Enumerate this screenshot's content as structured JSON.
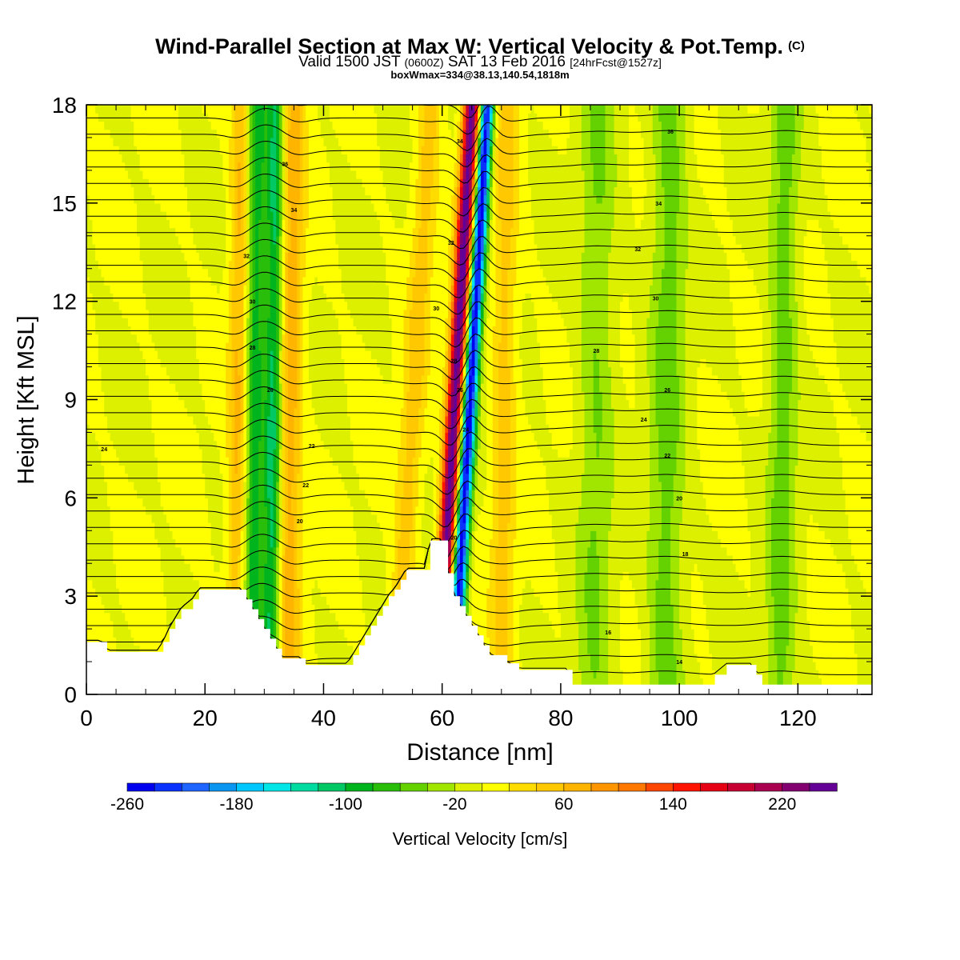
{
  "title": {
    "main": "Wind-Parallel Section at Max W: Vertical Velocity & Pot.Temp.",
    "copyright": "(C)",
    "valid_prefix": "Valid 1500 JST",
    "valid_utc": "(0600Z)",
    "valid_date": "SAT 13 Feb 2016",
    "fcst": "[24hrFcst@1527z]",
    "boxinfo": "boxWmax=334@38.13,140.54,1818m"
  },
  "chart_data": {
    "type": "heatmap",
    "xlabel": "Distance [nm]",
    "ylabel": "Height [Kft MSL]",
    "xlim": [
      0,
      132.5
    ],
    "ylim": [
      0,
      18
    ],
    "x_ticks": [
      0,
      20,
      40,
      60,
      80,
      100,
      120
    ],
    "y_ticks": [
      0,
      3,
      6,
      9,
      12,
      15,
      18
    ],
    "colorbar": {
      "label": "Vertical Velocity [cm/s]",
      "min": -260,
      "max": 260,
      "step": 20,
      "tick_values": [
        -260,
        -180,
        -100,
        -20,
        60,
        140,
        220
      ],
      "colors": [
        "#0000f0",
        "#0a32ff",
        "#1e64ff",
        "#0a96f0",
        "#00c8ff",
        "#00e6e6",
        "#00dca0",
        "#00c864",
        "#00b41e",
        "#28be0a",
        "#64d200",
        "#a0e600",
        "#dcf000",
        "#ffff00",
        "#ffdc00",
        "#ffc800",
        "#ffb400",
        "#ff9600",
        "#ff7800",
        "#ff4600",
        "#ff1400",
        "#e60014",
        "#c80032",
        "#aa0050",
        "#820070",
        "#640096"
      ]
    },
    "vertical_velocity_bands": [
      {
        "x": 25.5,
        "w": 1.5,
        "value": 60
      },
      {
        "x": 28.5,
        "w": 1.4,
        "value": -90
      },
      {
        "x": 31.5,
        "w": 1.5,
        "value": -110
      },
      {
        "x": 34.5,
        "w": 2.0,
        "value": 70
      },
      {
        "x": 55.5,
        "w": 2.0,
        "value": 50
      },
      {
        "x": 62.5,
        "w": 1.4,
        "value": 260
      },
      {
        "x": 65.0,
        "w": 1.2,
        "value": -260
      },
      {
        "x": 70.5,
        "w": 2.0,
        "value": 50
      },
      {
        "x": 86.0,
        "w": 3.0,
        "value": -40
      },
      {
        "x": 98.0,
        "w": 3.0,
        "value": -50
      },
      {
        "x": 117.5,
        "w": 2.5,
        "value": -50
      }
    ],
    "terrain": [
      [
        0,
        1.6
      ],
      [
        2.5,
        1.6
      ],
      [
        3.5,
        1.3
      ],
      [
        12,
        1.3
      ],
      [
        13,
        1.6
      ],
      [
        14,
        2.0
      ],
      [
        15,
        2.3
      ],
      [
        16,
        2.6
      ],
      [
        18,
        2.9
      ],
      [
        19,
        3.2
      ],
      [
        26,
        3.2
      ],
      [
        27,
        2.9
      ],
      [
        28,
        2.6
      ],
      [
        29,
        2.3
      ],
      [
        30,
        2.0
      ],
      [
        31,
        1.7
      ],
      [
        32,
        1.4
      ],
      [
        33,
        1.1
      ],
      [
        36,
        1.1
      ],
      [
        37,
        0.9
      ],
      [
        44,
        0.9
      ],
      [
        45,
        1.2
      ],
      [
        46,
        1.5
      ],
      [
        47,
        1.8
      ],
      [
        48,
        2.1
      ],
      [
        49,
        2.4
      ],
      [
        50,
        2.7
      ],
      [
        51,
        3.0
      ],
      [
        52,
        3.2
      ],
      [
        53,
        3.5
      ],
      [
        54,
        3.8
      ],
      [
        57,
        3.8
      ],
      [
        58,
        4.7
      ],
      [
        60,
        4.7
      ],
      [
        61,
        3.7
      ],
      [
        62,
        3.0
      ],
      [
        63,
        2.7
      ],
      [
        64,
        2.4
      ],
      [
        65,
        2.1
      ],
      [
        66,
        1.8
      ],
      [
        67,
        1.5
      ],
      [
        68,
        1.2
      ],
      [
        71,
        0.95
      ],
      [
        73,
        0.75
      ],
      [
        81,
        0.75
      ],
      [
        82,
        0.3
      ],
      [
        90,
        0.3
      ],
      [
        95,
        0.3
      ],
      [
        105,
        0.3
      ],
      [
        106,
        0.6
      ],
      [
        108,
        0.9
      ],
      [
        112,
        0.9
      ],
      [
        113,
        0.6
      ],
      [
        114,
        0.3
      ],
      [
        132.5,
        0.3
      ]
    ],
    "theta_labels": [
      {
        "text": "36",
        "x": 33.5,
        "y": 16.2
      },
      {
        "text": "36",
        "x": 98.5,
        "y": 17.2
      },
      {
        "text": "34",
        "x": 35.0,
        "y": 14.8
      },
      {
        "text": "34",
        "x": 96.5,
        "y": 15.0
      },
      {
        "text": "34",
        "x": 63.0,
        "y": 16.9
      },
      {
        "text": "32",
        "x": 27.0,
        "y": 13.4
      },
      {
        "text": "32",
        "x": 93.0,
        "y": 13.6
      },
      {
        "text": "32",
        "x": 61.5,
        "y": 13.8
      },
      {
        "text": "30",
        "x": 28.0,
        "y": 12.0
      },
      {
        "text": "30",
        "x": 96.0,
        "y": 12.1
      },
      {
        "text": "30",
        "x": 59.0,
        "y": 11.8
      },
      {
        "text": "28",
        "x": 28.0,
        "y": 10.6
      },
      {
        "text": "28",
        "x": 86.0,
        "y": 10.5
      },
      {
        "text": "28",
        "x": 62.0,
        "y": 10.2
      },
      {
        "text": "26",
        "x": 31.0,
        "y": 9.3
      },
      {
        "text": "26",
        "x": 98.0,
        "y": 9.3
      },
      {
        "text": "26",
        "x": 63.0,
        "y": 9.3
      },
      {
        "text": "24",
        "x": 3.0,
        "y": 7.5
      },
      {
        "text": "24",
        "x": 94.0,
        "y": 8.4
      },
      {
        "text": "24",
        "x": 64.0,
        "y": 8.1
      },
      {
        "text": "22",
        "x": 38.0,
        "y": 7.6
      },
      {
        "text": "22",
        "x": 98.0,
        "y": 7.3
      },
      {
        "text": "22",
        "x": 37.0,
        "y": 6.4
      },
      {
        "text": "20",
        "x": 36.0,
        "y": 5.3
      },
      {
        "text": "20",
        "x": 100.0,
        "y": 6.0
      },
      {
        "text": "20",
        "x": 62.0,
        "y": 4.8
      },
      {
        "text": "18",
        "x": 101.0,
        "y": 4.3
      },
      {
        "text": "16",
        "x": 88.0,
        "y": 1.9
      },
      {
        "text": "14",
        "x": 100.0,
        "y": 1.0
      }
    ]
  }
}
